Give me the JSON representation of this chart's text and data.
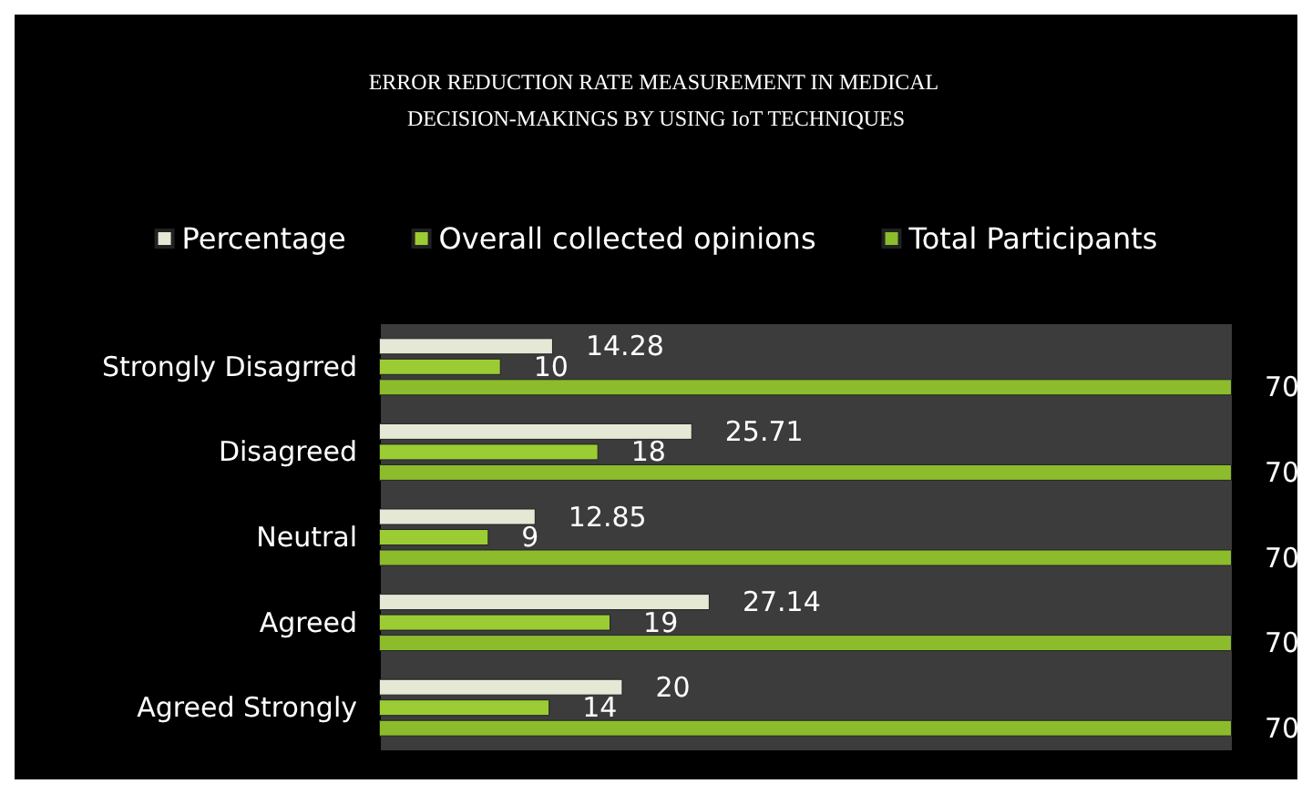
{
  "chart_data": {
    "type": "bar",
    "orientation": "horizontal",
    "title": "ERROR REDUCTION RATE MEASUREMENT IN MEDICAL DECISION-MAKINGS BY USING IoT TECHNIQUES",
    "categories": [
      "Strongly Disagrred",
      "Disagreed",
      "Neutral",
      "Agreed",
      "Agreed Strongly"
    ],
    "series": [
      {
        "name": "Percentage",
        "color": "#e4e8d4",
        "values": [
          14.28,
          25.71,
          12.85,
          27.14,
          20
        ]
      },
      {
        "name": "Overall collected opinions",
        "color": "#9ccc34",
        "values": [
          10,
          18,
          9,
          19,
          14
        ]
      },
      {
        "name": "Total Participants",
        "color": "#8cbc2c",
        "values": [
          70,
          70,
          70,
          70,
          70
        ]
      }
    ],
    "data_labels": true,
    "legend": "top"
  }
}
